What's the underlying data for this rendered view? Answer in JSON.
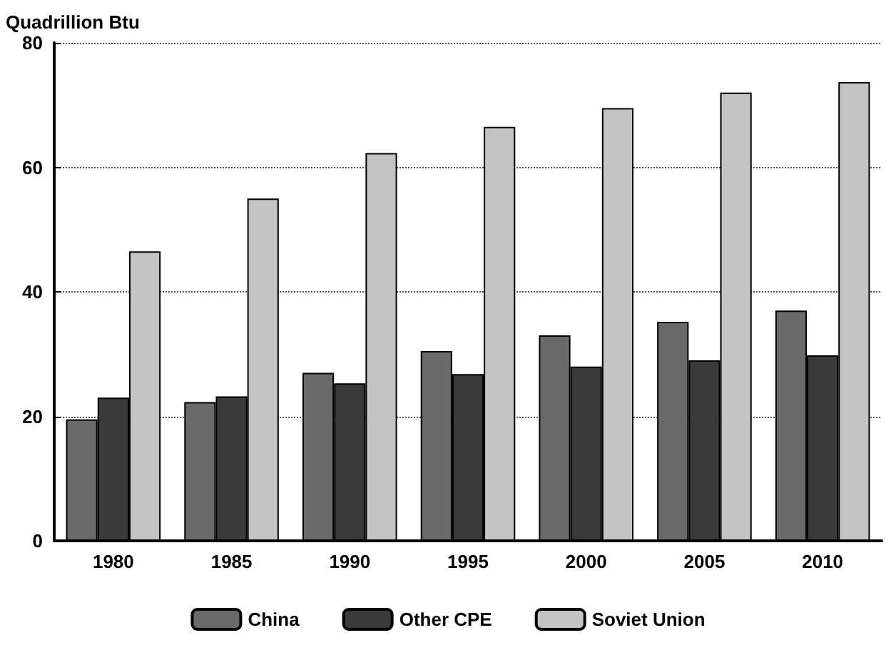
{
  "chart_data": {
    "type": "bar",
    "ylabel": "Quadrillion Btu",
    "categories": [
      "1980",
      "1985",
      "1990",
      "1995",
      "2000",
      "2005",
      "2010"
    ],
    "series": [
      {
        "name": "China",
        "color": "#6a6a6a",
        "values": [
          19.5,
          22.3,
          27,
          30.5,
          33,
          35.2,
          37
        ]
      },
      {
        "name": "Other CPE",
        "color": "#3a3a3a",
        "values": [
          23,
          23.2,
          25.3,
          26.8,
          28,
          29,
          29.8
        ]
      },
      {
        "name": "Soviet Union",
        "color": "#c4c4c4",
        "values": [
          46.5,
          55,
          62.3,
          66.5,
          69.5,
          72,
          73.7
        ]
      }
    ],
    "ylim": [
      0,
      80
    ],
    "yticks": [
      0,
      20,
      40,
      60,
      80
    ],
    "grid": "y",
    "legend": "bottom"
  }
}
